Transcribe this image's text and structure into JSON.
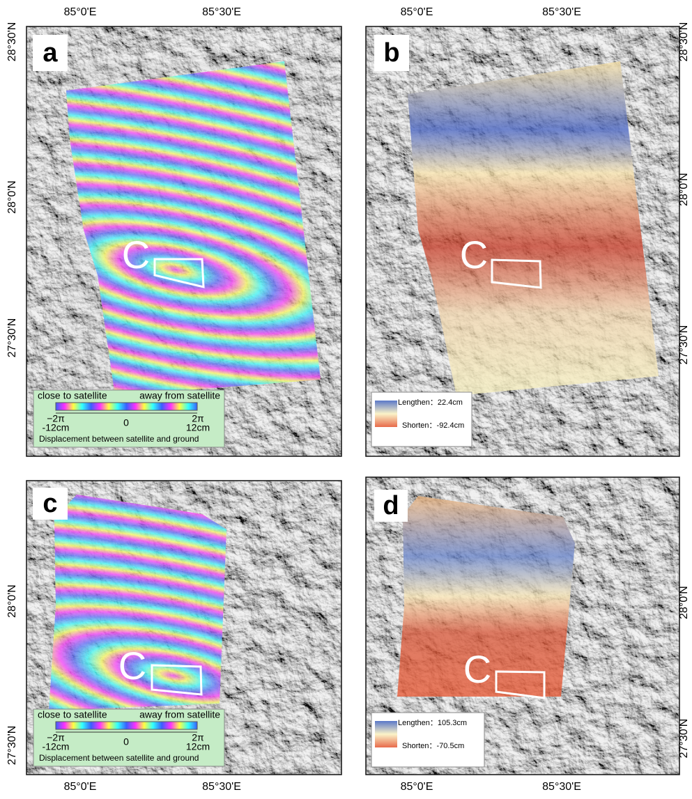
{
  "panels": [
    {
      "label": "a",
      "marker": "C",
      "lon_ticks": [
        "85°0'E",
        "85°30'E"
      ],
      "lat_ticks": [
        "28°30'N",
        "28°0'N",
        "27°30'N"
      ],
      "legend": {
        "left_title": "close to satellite",
        "right_title": "away from satellite",
        "min_phase": "−2π",
        "min_disp": "-12cm",
        "mid": "0",
        "max_phase": "2π",
        "max_disp": "12cm",
        "caption": "Displacement between satellite and ground"
      }
    },
    {
      "label": "b",
      "marker": "C",
      "lon_ticks": [
        "85°0'E",
        "85°30'E"
      ],
      "lat_ticks": [
        "28°30'N",
        "28°0'N",
        "27°30'N"
      ],
      "legend": {
        "lengthen": "Lengthen：22.4cm",
        "shorten": "Shorten：-92.4cm"
      }
    },
    {
      "label": "c",
      "marker": "C",
      "lon_ticks": [
        "85°0'E",
        "85°30'E"
      ],
      "lat_ticks": [
        "28°0'N",
        "27°30'N"
      ],
      "legend": {
        "left_title": "close to satellite",
        "right_title": "away from satellite",
        "min_phase": "−2π",
        "min_disp": "-12cm",
        "mid": "0",
        "max_phase": "2π",
        "max_disp": "12cm",
        "caption": "Displacement between satellite and ground"
      }
    },
    {
      "label": "d",
      "marker": "C",
      "lon_ticks": [
        "85°0'E",
        "85°30'E"
      ],
      "lat_ticks": [
        "28°0'N",
        "27°30'N"
      ],
      "legend": {
        "lengthen": "Lengthen：105.3cm",
        "shorten": "Shorten：-70.5cm"
      }
    }
  ]
}
